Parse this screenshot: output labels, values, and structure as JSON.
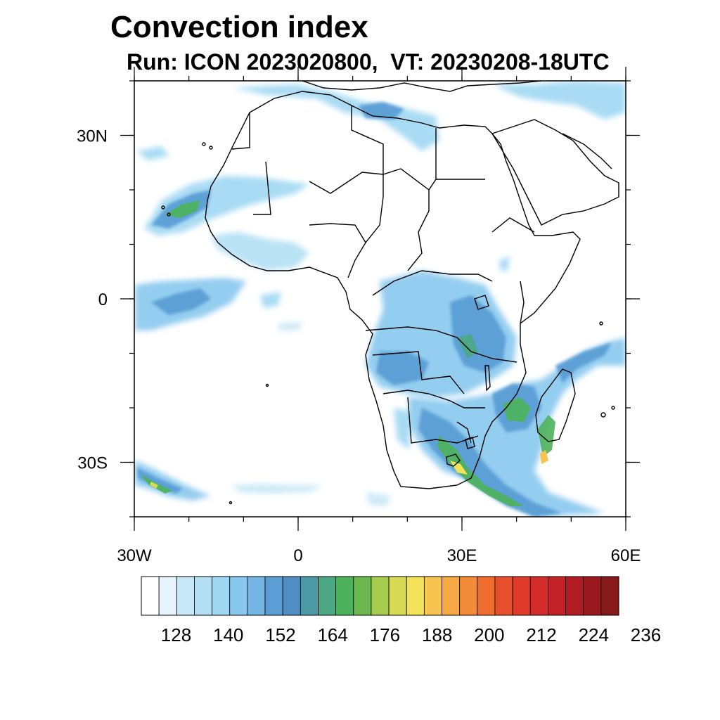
{
  "title": "Convection index",
  "subtitle": "Run: ICON 2023020800,  VT: 20230208-18UTC",
  "map": {
    "lon_range": [
      -30,
      60
    ],
    "lat_range": [
      -40,
      40
    ],
    "x_ticks": [
      {
        "lon": -30,
        "label": "30W"
      },
      {
        "lon": 0,
        "label": "0"
      },
      {
        "lon": 30,
        "label": "30E"
      },
      {
        "lon": 60,
        "label": "60E"
      }
    ],
    "y_ticks": [
      {
        "lat": 30,
        "label": "30N"
      },
      {
        "lat": 0,
        "label": "0"
      },
      {
        "lat": -30,
        "label": "30S"
      }
    ],
    "minor_lon_step": 10,
    "minor_lat_step": 10
  },
  "colorbar": {
    "colors": [
      "#ffffff",
      "#e6f4fb",
      "#c9e8f7",
      "#b3e0f5",
      "#a0d8f3",
      "#88c8ee",
      "#74b5e4",
      "#5a9ed5",
      "#4f8fc4",
      "#4c9aa6",
      "#4aa882",
      "#4cb35a",
      "#6ab84d",
      "#a6cc4f",
      "#d6da54",
      "#f2e35a",
      "#f7c54f",
      "#f5a843",
      "#f28b37",
      "#ef6d2f",
      "#e8502b",
      "#df3a2a",
      "#d42c2a",
      "#c42229",
      "#b01b24",
      "#9a1a1f",
      "#861919"
    ],
    "tick_labels": [
      "128",
      "140",
      "152",
      "164",
      "176",
      "188",
      "200",
      "212",
      "224",
      "236"
    ],
    "tick_positions": [
      2,
      5,
      8,
      11,
      14,
      17,
      20,
      23,
      26,
      29
    ]
  },
  "legend_colors": {
    "coast": "#000000",
    "low": "#a0d8f3",
    "mid": "#5a9ed5",
    "high": "#4cb35a",
    "peak": "#f2e35a"
  }
}
